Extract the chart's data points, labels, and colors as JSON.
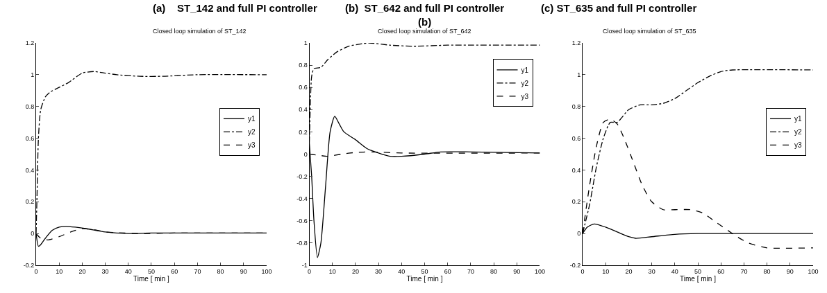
{
  "chart_data": [
    {
      "type": "line",
      "title": "(a)    ST_142 and full PI controller",
      "subtitle": "Closed loop simulation of ST_142",
      "xlabel": "Time [ min ]",
      "xlim": [
        0,
        100
      ],
      "xticks": [
        0,
        10,
        20,
        30,
        40,
        50,
        60,
        70,
        80,
        90,
        100
      ],
      "ylim": [
        -0.2,
        1.2
      ],
      "yticks": [
        -0.2,
        0,
        0.2,
        0.4,
        0.6,
        0.8,
        1,
        1.2
      ],
      "legend": "right",
      "marker": "none",
      "series": [
        {
          "name": "y1",
          "color": "#000000",
          "line_style": "solid",
          "x": [
            0,
            1,
            2,
            4,
            7,
            10,
            13,
            17,
            22,
            30,
            40,
            50,
            100
          ],
          "values": [
            0,
            -0.08,
            -0.07,
            -0.03,
            0.02,
            0.04,
            0.045,
            0.04,
            0.03,
            0.01,
            0,
            0.003,
            0.003
          ]
        },
        {
          "name": "y2",
          "color": "#000000",
          "line_style": "dashdot",
          "x": [
            0,
            0.5,
            1,
            2,
            4,
            6,
            10,
            14,
            20,
            25,
            30,
            35,
            45,
            55,
            70,
            100
          ],
          "values": [
            0,
            0.3,
            0.6,
            0.78,
            0.86,
            0.89,
            0.92,
            0.95,
            1.01,
            1.02,
            1.01,
            1.0,
            0.99,
            0.99,
            1.0,
            1.0
          ]
        },
        {
          "name": "y3",
          "color": "#000000",
          "line_style": "dashed",
          "x": [
            0,
            2,
            5,
            10,
            15,
            20,
            25,
            30,
            35,
            45,
            60,
            100
          ],
          "values": [
            0,
            -0.03,
            -0.04,
            -0.02,
            0.01,
            0.03,
            0.025,
            0.01,
            0.005,
            0,
            0.003,
            0.003
          ]
        }
      ]
    },
    {
      "type": "line",
      "title": "(b)  ST_642 and full PI controller",
      "subtitle": "Closed loop simulation of ST_642",
      "annotations": [
        "(b)"
      ],
      "xlabel": "Time [ min ]",
      "xlim": [
        0,
        100
      ],
      "xticks": [
        0,
        10,
        20,
        30,
        40,
        50,
        60,
        70,
        80,
        90,
        100
      ],
      "ylim": [
        -1,
        1
      ],
      "yticks": [
        -1,
        -0.8,
        -0.6,
        -0.4,
        -0.2,
        0,
        0.2,
        0.4,
        0.6,
        0.8,
        1
      ],
      "legend": "top right",
      "marker": "none",
      "series": [
        {
          "name": "y1",
          "color": "#000000",
          "line_style": "solid",
          "x": [
            0,
            1,
            2,
            3.5,
            5,
            7,
            9,
            11,
            13,
            15,
            20,
            25,
            30,
            35,
            40,
            50,
            57,
            70,
            100
          ],
          "values": [
            0.1,
            -0.2,
            -0.6,
            -0.93,
            -0.8,
            -0.3,
            0.2,
            0.34,
            0.27,
            0.2,
            0.13,
            0.05,
            0.01,
            -0.02,
            -0.02,
            0,
            0.02,
            0.02,
            0.01
          ]
        },
        {
          "name": "y2",
          "color": "#000000",
          "line_style": "dashdot",
          "x": [
            0,
            0.5,
            1,
            2,
            5,
            8,
            12,
            17,
            22,
            26,
            35,
            45,
            60,
            100
          ],
          "values": [
            0.1,
            0.5,
            0.7,
            0.77,
            0.78,
            0.85,
            0.92,
            0.97,
            0.99,
            1.0,
            0.98,
            0.97,
            0.98,
            0.98
          ]
        },
        {
          "name": "y3",
          "color": "#000000",
          "line_style": "dashed",
          "x": [
            0,
            4,
            8,
            14,
            20,
            27,
            40,
            100
          ],
          "values": [
            0,
            -0.01,
            -0.02,
            0,
            0.015,
            0.02,
            0.01,
            0.01
          ]
        }
      ]
    },
    {
      "type": "line",
      "title": "(c) ST_635 and full PI controller",
      "subtitle": "Closed loop simulation of ST_635",
      "xlabel": "Time [ min ]",
      "xlim": [
        0,
        100
      ],
      "xticks": [
        0,
        10,
        20,
        30,
        40,
        50,
        60,
        70,
        80,
        90,
        100
      ],
      "ylim": [
        -0.2,
        1.2
      ],
      "yticks": [
        -0.2,
        0,
        0.2,
        0.4,
        0.6,
        0.8,
        1,
        1.2
      ],
      "legend": "right",
      "marker": "none",
      "series": [
        {
          "name": "y1",
          "color": "#000000",
          "line_style": "solid",
          "x": [
            0,
            2,
            5,
            10,
            15,
            20,
            23,
            30,
            40,
            50,
            100
          ],
          "values": [
            0,
            0.04,
            0.06,
            0.04,
            0.01,
            -0.02,
            -0.03,
            -0.02,
            -0.005,
            0,
            0
          ]
        },
        {
          "name": "y2",
          "color": "#000000",
          "line_style": "dashdot",
          "x": [
            0,
            3,
            6,
            9,
            12,
            15,
            20,
            25,
            30,
            35,
            40,
            45,
            50,
            55,
            60,
            65,
            100
          ],
          "values": [
            0,
            0.18,
            0.42,
            0.6,
            0.7,
            0.7,
            0.78,
            0.81,
            0.81,
            0.82,
            0.85,
            0.9,
            0.95,
            0.99,
            1.02,
            1.03,
            1.03
          ]
        },
        {
          "name": "y3",
          "color": "#000000",
          "line_style": "dashed",
          "x": [
            0,
            3,
            6,
            9,
            12,
            15,
            18,
            22,
            26,
            30,
            35,
            40,
            47,
            52,
            58,
            63,
            67,
            72,
            80,
            100
          ],
          "values": [
            0,
            0.3,
            0.55,
            0.7,
            0.72,
            0.69,
            0.6,
            0.45,
            0.3,
            0.2,
            0.15,
            0.15,
            0.15,
            0.13,
            0.07,
            0.02,
            -0.02,
            -0.06,
            -0.09,
            -0.09
          ]
        }
      ]
    }
  ]
}
